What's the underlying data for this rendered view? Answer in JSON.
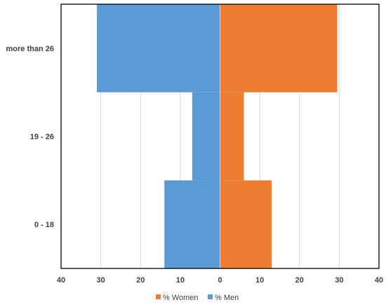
{
  "chart_data": {
    "type": "bar",
    "orientation": "horizontal",
    "categories": [
      "0 - 18",
      "19 - 26",
      "more than 26"
    ],
    "series": [
      {
        "name": "% Women",
        "values": [
          13,
          6,
          29.5
        ],
        "color": "#ED7D31"
      },
      {
        "name": "% Men",
        "values": [
          14,
          7,
          31
        ],
        "color": "#5B9BD5"
      }
    ],
    "x_ticks": [
      "40",
      "30",
      "20",
      "10",
      "0",
      "10",
      "20",
      "30",
      "40"
    ],
    "xlim": [
      -40,
      40
    ],
    "grid": true,
    "legend_position": "bottom"
  }
}
